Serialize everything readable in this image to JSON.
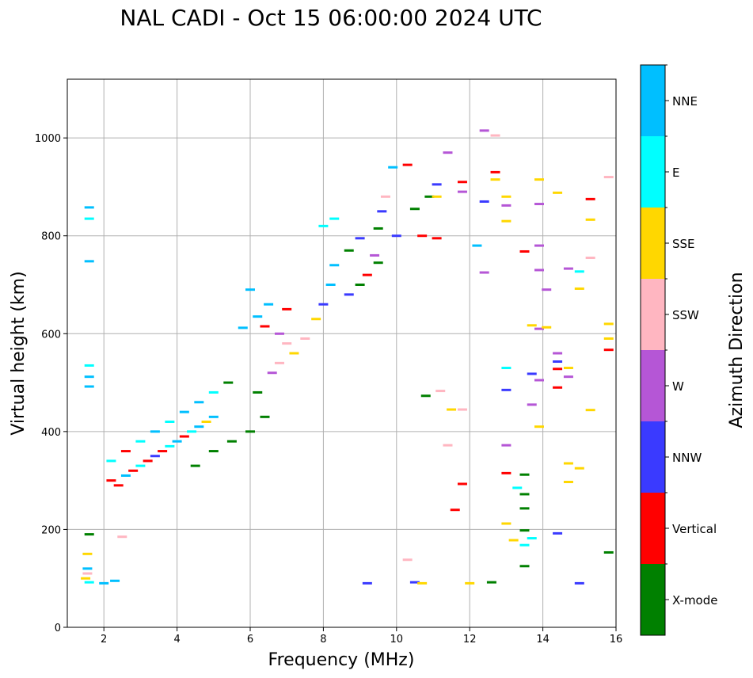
{
  "chart_data": {
    "type": "scatter",
    "title": "NAL CADI - Oct 15 06:00:00 2024 UTC",
    "xlabel": "Frequency (MHz)",
    "ylabel": "Virtual height (km)",
    "xlim": [
      1,
      16
    ],
    "ylim": [
      0,
      1120
    ],
    "xticks": [
      "2",
      "4",
      "6",
      "8",
      "10",
      "12",
      "14",
      "16"
    ],
    "yticks": [
      "0",
      "200",
      "400",
      "600",
      "800",
      "1000"
    ],
    "grid": true,
    "colorbar": {
      "label": "Azimuth Direction",
      "categories": [
        {
          "name": "X-mode",
          "color": "#008000"
        },
        {
          "name": "Vertical",
          "color": "#ff0000"
        },
        {
          "name": "NNW",
          "color": "#3a3aff"
        },
        {
          "name": "W",
          "color": "#b556d6"
        },
        {
          "name": "SSW",
          "color": "#ffb6c1"
        },
        {
          "name": "SSE",
          "color": "#ffd700"
        },
        {
          "name": "E",
          "color": "#00ffff"
        },
        {
          "name": "NNE",
          "color": "#00bfff"
        }
      ]
    },
    "points": [
      {
        "x": 1.6,
        "y": 858,
        "c": "NNE"
      },
      {
        "x": 1.6,
        "y": 835,
        "c": "E"
      },
      {
        "x": 1.6,
        "y": 748,
        "c": "NNE"
      },
      {
        "x": 1.6,
        "y": 535,
        "c": "E"
      },
      {
        "x": 1.6,
        "y": 512,
        "c": "NNE"
      },
      {
        "x": 1.6,
        "y": 492,
        "c": "NNE"
      },
      {
        "x": 1.6,
        "y": 190,
        "c": "X-mode"
      },
      {
        "x": 1.55,
        "y": 150,
        "c": "SSE"
      },
      {
        "x": 1.55,
        "y": 120,
        "c": "NNE"
      },
      {
        "x": 1.5,
        "y": 100,
        "c": "SSE"
      },
      {
        "x": 1.6,
        "y": 92,
        "c": "E"
      },
      {
        "x": 1.55,
        "y": 110,
        "c": "SSW"
      },
      {
        "x": 2.0,
        "y": 90,
        "c": "NNE"
      },
      {
        "x": 2.3,
        "y": 95,
        "c": "NNE"
      },
      {
        "x": 2.5,
        "y": 185,
        "c": "SSW"
      },
      {
        "x": 2.2,
        "y": 300,
        "c": "Vertical"
      },
      {
        "x": 2.4,
        "y": 290,
        "c": "Vertical"
      },
      {
        "x": 2.6,
        "y": 310,
        "c": "NNE"
      },
      {
        "x": 2.8,
        "y": 320,
        "c": "Vertical"
      },
      {
        "x": 3.0,
        "y": 330,
        "c": "E"
      },
      {
        "x": 3.2,
        "y": 340,
        "c": "Vertical"
      },
      {
        "x": 3.4,
        "y": 350,
        "c": "NNW"
      },
      {
        "x": 3.6,
        "y": 360,
        "c": "Vertical"
      },
      {
        "x": 3.8,
        "y": 370,
        "c": "E"
      },
      {
        "x": 4.0,
        "y": 380,
        "c": "NNE"
      },
      {
        "x": 4.2,
        "y": 390,
        "c": "Vertical"
      },
      {
        "x": 4.4,
        "y": 400,
        "c": "E"
      },
      {
        "x": 4.6,
        "y": 410,
        "c": "NNE"
      },
      {
        "x": 4.8,
        "y": 420,
        "c": "SSE"
      },
      {
        "x": 5.0,
        "y": 430,
        "c": "NNE"
      },
      {
        "x": 2.2,
        "y": 340,
        "c": "E"
      },
      {
        "x": 2.6,
        "y": 360,
        "c": "Vertical"
      },
      {
        "x": 3.0,
        "y": 380,
        "c": "E"
      },
      {
        "x": 3.4,
        "y": 400,
        "c": "NNE"
      },
      {
        "x": 3.8,
        "y": 420,
        "c": "E"
      },
      {
        "x": 4.2,
        "y": 440,
        "c": "NNE"
      },
      {
        "x": 4.6,
        "y": 460,
        "c": "NNE"
      },
      {
        "x": 5.0,
        "y": 480,
        "c": "E"
      },
      {
        "x": 5.4,
        "y": 500,
        "c": "X-mode"
      },
      {
        "x": 4.5,
        "y": 330,
        "c": "X-mode"
      },
      {
        "x": 5.0,
        "y": 360,
        "c": "X-mode"
      },
      {
        "x": 5.5,
        "y": 380,
        "c": "X-mode"
      },
      {
        "x": 6.0,
        "y": 400,
        "c": "X-mode"
      },
      {
        "x": 6.4,
        "y": 430,
        "c": "X-mode"
      },
      {
        "x": 6.2,
        "y": 480,
        "c": "X-mode"
      },
      {
        "x": 5.8,
        "y": 612,
        "c": "NNE"
      },
      {
        "x": 6.0,
        "y": 690,
        "c": "NNE"
      },
      {
        "x": 6.2,
        "y": 635,
        "c": "NNE"
      },
      {
        "x": 6.5,
        "y": 660,
        "c": "NNE"
      },
      {
        "x": 6.4,
        "y": 615,
        "c": "Vertical"
      },
      {
        "x": 6.8,
        "y": 600,
        "c": "W"
      },
      {
        "x": 7.0,
        "y": 580,
        "c": "SSW"
      },
      {
        "x": 7.2,
        "y": 560,
        "c": "SSE"
      },
      {
        "x": 6.6,
        "y": 520,
        "c": "W"
      },
      {
        "x": 6.8,
        "y": 540,
        "c": "SSW"
      },
      {
        "x": 7.0,
        "y": 650,
        "c": "Vertical"
      },
      {
        "x": 7.5,
        "y": 590,
        "c": "SSW"
      },
      {
        "x": 7.8,
        "y": 630,
        "c": "SSE"
      },
      {
        "x": 8.0,
        "y": 660,
        "c": "NNW"
      },
      {
        "x": 8.2,
        "y": 700,
        "c": "NNE"
      },
      {
        "x": 8.3,
        "y": 740,
        "c": "NNE"
      },
      {
        "x": 8.0,
        "y": 820,
        "c": "E"
      },
      {
        "x": 8.3,
        "y": 835,
        "c": "E"
      },
      {
        "x": 8.7,
        "y": 770,
        "c": "X-mode"
      },
      {
        "x": 8.7,
        "y": 680,
        "c": "NNW"
      },
      {
        "x": 9.0,
        "y": 700,
        "c": "X-mode"
      },
      {
        "x": 9.0,
        "y": 795,
        "c": "NNW"
      },
      {
        "x": 9.2,
        "y": 720,
        "c": "Vertical"
      },
      {
        "x": 9.4,
        "y": 760,
        "c": "W"
      },
      {
        "x": 9.5,
        "y": 815,
        "c": "X-mode"
      },
      {
        "x": 9.6,
        "y": 850,
        "c": "NNW"
      },
      {
        "x": 9.7,
        "y": 880,
        "c": "SSW"
      },
      {
        "x": 9.9,
        "y": 940,
        "c": "NNE"
      },
      {
        "x": 9.5,
        "y": 745,
        "c": "X-mode"
      },
      {
        "x": 10.0,
        "y": 800,
        "c": "NNW"
      },
      {
        "x": 10.3,
        "y": 945,
        "c": "Vertical"
      },
      {
        "x": 10.5,
        "y": 855,
        "c": "X-mode"
      },
      {
        "x": 10.7,
        "y": 800,
        "c": "Vertical"
      },
      {
        "x": 10.9,
        "y": 880,
        "c": "X-mode"
      },
      {
        "x": 11.1,
        "y": 905,
        "c": "NNW"
      },
      {
        "x": 11.1,
        "y": 880,
        "c": "SSE"
      },
      {
        "x": 11.1,
        "y": 795,
        "c": "Vertical"
      },
      {
        "x": 11.4,
        "y": 970,
        "c": "W"
      },
      {
        "x": 11.8,
        "y": 890,
        "c": "W"
      },
      {
        "x": 11.8,
        "y": 910,
        "c": "Vertical"
      },
      {
        "x": 12.2,
        "y": 780,
        "c": "NNE"
      },
      {
        "x": 12.4,
        "y": 870,
        "c": "NNW"
      },
      {
        "x": 12.4,
        "y": 1015,
        "c": "W"
      },
      {
        "x": 12.7,
        "y": 1005,
        "c": "SSW"
      },
      {
        "x": 12.7,
        "y": 930,
        "c": "Vertical"
      },
      {
        "x": 12.7,
        "y": 915,
        "c": "SSE"
      },
      {
        "x": 13.0,
        "y": 880,
        "c": "SSE"
      },
      {
        "x": 13.0,
        "y": 862,
        "c": "W"
      },
      {
        "x": 13.0,
        "y": 830,
        "c": "SSE"
      },
      {
        "x": 12.4,
        "y": 725,
        "c": "W"
      },
      {
        "x": 13.5,
        "y": 768,
        "c": "Vertical"
      },
      {
        "x": 13.9,
        "y": 915,
        "c": "SSE"
      },
      {
        "x": 13.9,
        "y": 865,
        "c": "W"
      },
      {
        "x": 13.9,
        "y": 780,
        "c": "W"
      },
      {
        "x": 13.9,
        "y": 730,
        "c": "W"
      },
      {
        "x": 14.1,
        "y": 690,
        "c": "W"
      },
      {
        "x": 14.4,
        "y": 888,
        "c": "SSE"
      },
      {
        "x": 14.7,
        "y": 733,
        "c": "W"
      },
      {
        "x": 15.0,
        "y": 727,
        "c": "E"
      },
      {
        "x": 15.0,
        "y": 692,
        "c": "SSE"
      },
      {
        "x": 15.3,
        "y": 875,
        "c": "Vertical"
      },
      {
        "x": 15.3,
        "y": 833,
        "c": "SSE"
      },
      {
        "x": 15.3,
        "y": 755,
        "c": "SSW"
      },
      {
        "x": 15.8,
        "y": 920,
        "c": "SSW"
      },
      {
        "x": 15.8,
        "y": 620,
        "c": "SSE"
      },
      {
        "x": 15.8,
        "y": 590,
        "c": "SSE"
      },
      {
        "x": 15.8,
        "y": 567,
        "c": "Vertical"
      },
      {
        "x": 15.3,
        "y": 444,
        "c": "SSE"
      },
      {
        "x": 15.8,
        "y": 153,
        "c": "X-mode"
      },
      {
        "x": 13.7,
        "y": 617,
        "c": "SSE"
      },
      {
        "x": 13.9,
        "y": 610,
        "c": "W"
      },
      {
        "x": 14.1,
        "y": 613,
        "c": "SSE"
      },
      {
        "x": 14.4,
        "y": 560,
        "c": "W"
      },
      {
        "x": 14.4,
        "y": 543,
        "c": "NNW"
      },
      {
        "x": 14.4,
        "y": 528,
        "c": "Vertical"
      },
      {
        "x": 14.4,
        "y": 490,
        "c": "Vertical"
      },
      {
        "x": 14.7,
        "y": 530,
        "c": "SSE"
      },
      {
        "x": 14.7,
        "y": 512,
        "c": "W"
      },
      {
        "x": 13.7,
        "y": 518,
        "c": "NNW"
      },
      {
        "x": 13.9,
        "y": 505,
        "c": "W"
      },
      {
        "x": 13.7,
        "y": 455,
        "c": "W"
      },
      {
        "x": 13.9,
        "y": 410,
        "c": "SSE"
      },
      {
        "x": 13.0,
        "y": 530,
        "c": "E"
      },
      {
        "x": 13.0,
        "y": 485,
        "c": "NNW"
      },
      {
        "x": 13.0,
        "y": 372,
        "c": "W"
      },
      {
        "x": 13.0,
        "y": 315,
        "c": "Vertical"
      },
      {
        "x": 13.3,
        "y": 285,
        "c": "E"
      },
      {
        "x": 13.5,
        "y": 312,
        "c": "X-mode"
      },
      {
        "x": 13.5,
        "y": 272,
        "c": "X-mode"
      },
      {
        "x": 13.5,
        "y": 243,
        "c": "X-mode"
      },
      {
        "x": 13.5,
        "y": 198,
        "c": "X-mode"
      },
      {
        "x": 13.5,
        "y": 168,
        "c": "E"
      },
      {
        "x": 13.5,
        "y": 125,
        "c": "X-mode"
      },
      {
        "x": 13.7,
        "y": 182,
        "c": "E"
      },
      {
        "x": 13.2,
        "y": 178,
        "c": "SSE"
      },
      {
        "x": 13.0,
        "y": 212,
        "c": "SSE"
      },
      {
        "x": 14.4,
        "y": 192,
        "c": "NNW"
      },
      {
        "x": 14.7,
        "y": 335,
        "c": "SSE"
      },
      {
        "x": 14.7,
        "y": 297,
        "c": "SSE"
      },
      {
        "x": 15.0,
        "y": 325,
        "c": "SSE"
      },
      {
        "x": 15.0,
        "y": 90,
        "c": "NNW"
      },
      {
        "x": 12.6,
        "y": 92,
        "c": "X-mode"
      },
      {
        "x": 12.0,
        "y": 90,
        "c": "SSE"
      },
      {
        "x": 11.8,
        "y": 293,
        "c": "Vertical"
      },
      {
        "x": 11.6,
        "y": 240,
        "c": "Vertical"
      },
      {
        "x": 11.4,
        "y": 372,
        "c": "SSW"
      },
      {
        "x": 11.5,
        "y": 445,
        "c": "SSE"
      },
      {
        "x": 11.8,
        "y": 445,
        "c": "SSW"
      },
      {
        "x": 11.2,
        "y": 483,
        "c": "SSW"
      },
      {
        "x": 10.8,
        "y": 473,
        "c": "X-mode"
      },
      {
        "x": 10.3,
        "y": 138,
        "c": "SSW"
      },
      {
        "x": 10.5,
        "y": 92,
        "c": "NNW"
      },
      {
        "x": 10.7,
        "y": 90,
        "c": "SSE"
      },
      {
        "x": 9.2,
        "y": 90,
        "c": "NNW"
      }
    ]
  }
}
